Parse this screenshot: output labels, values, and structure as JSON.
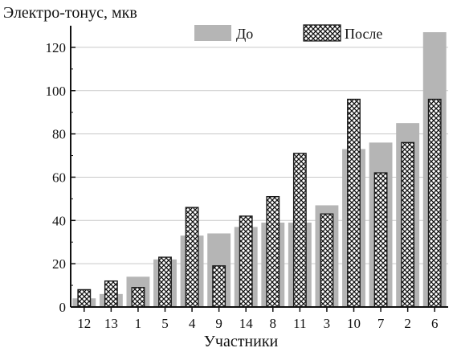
{
  "chart_data": {
    "type": "bar",
    "ylabel": "Электро-тонус, мкв",
    "xlabel": "Участники",
    "categories": [
      "12",
      "13",
      "1",
      "5",
      "4",
      "9",
      "14",
      "8",
      "11",
      "3",
      "10",
      "7",
      "2",
      "6"
    ],
    "series": [
      {
        "name": "До",
        "values": [
          4,
          6,
          14,
          22,
          33,
          34,
          37,
          39,
          39,
          47,
          73,
          76,
          85,
          127
        ],
        "color": "#b5b5b5",
        "style": "solid"
      },
      {
        "name": "После",
        "values": [
          8,
          12,
          9,
          23,
          46,
          19,
          42,
          51,
          71,
          43,
          96,
          62,
          76,
          96
        ],
        "color": "#1a1a1a",
        "style": "crosshatch"
      }
    ],
    "ylim": [
      0,
      130
    ],
    "yticks": [
      0,
      20,
      40,
      60,
      80,
      100,
      120
    ],
    "grid": true,
    "legend_position": "top"
  }
}
